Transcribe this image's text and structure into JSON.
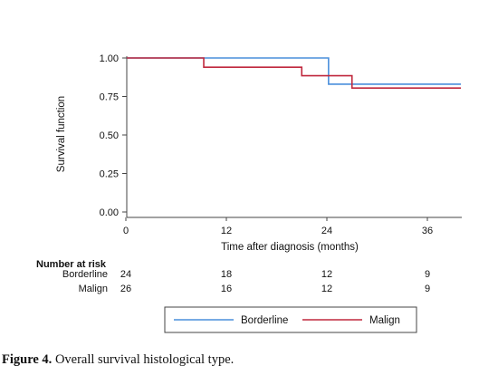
{
  "chart_data": {
    "type": "line",
    "step": true,
    "title": "",
    "xlabel": "Time after diagnosis (months)",
    "ylabel": "Survival function",
    "xlim": [
      0,
      40
    ],
    "ylim": [
      0,
      1
    ],
    "xticks": [
      0,
      12,
      24,
      36
    ],
    "xtick_labels": [
      "0",
      "12",
      "24",
      "36"
    ],
    "yticks": [
      0,
      0.25,
      0.5,
      0.75,
      1
    ],
    "ytick_labels": [
      "0.00",
      "0.25",
      "0.50",
      "0.75",
      "1.00"
    ],
    "grid": false,
    "legend_position": "bottom",
    "series": [
      {
        "name": "Borderline",
        "color": "#4a8fdc",
        "x": [
          0,
          24.2,
          40
        ],
        "y": [
          1.0,
          0.83,
          0.83
        ]
      },
      {
        "name": "Malign",
        "color": "#c0283d",
        "x": [
          0,
          9.3,
          21,
          27,
          40
        ],
        "y": [
          1.0,
          0.94,
          0.885,
          0.805,
          0.805
        ]
      }
    ],
    "risk_table": {
      "title": "Number at risk",
      "times": [
        0,
        12,
        24,
        36
      ],
      "rows": [
        {
          "label": "Borderline",
          "values": [
            "24",
            "18",
            "12",
            "9"
          ]
        },
        {
          "label": "Malign",
          "values": [
            "26",
            "16",
            "12",
            "9"
          ]
        }
      ]
    }
  },
  "caption": {
    "label": "Figure 4.",
    "text": " Overall survival histological type."
  }
}
